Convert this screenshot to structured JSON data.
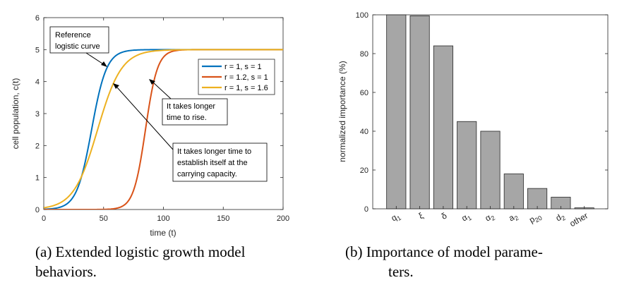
{
  "chart_data": [
    {
      "type": "line",
      "xlabel": "time (t)",
      "ylabel": "cell population, c(t)",
      "xlim": [
        0,
        200
      ],
      "ylim": [
        0,
        6
      ],
      "xticks": [
        "0",
        "50",
        "100",
        "150",
        "200"
      ],
      "yticks": [
        "0",
        "1",
        "2",
        "3",
        "4",
        "5",
        "6"
      ],
      "grid": false,
      "legend_position": "right",
      "series": [
        {
          "name": "r = 1, s = 1",
          "color": "#0072BD",
          "K": 5,
          "midpoint": 40,
          "steepness": 0.16
        },
        {
          "name": "r = 1.2, s = 1",
          "color": "#D95319",
          "K": 5,
          "midpoint": 85,
          "steepness": 0.2
        },
        {
          "name": "r = 1, s = 1.6",
          "color": "#EDB120",
          "K": 5,
          "midpoint": 45,
          "steepness": 0.1
        }
      ],
      "annotations": [
        {
          "lines": [
            "Reference",
            "logistic curve"
          ],
          "target": {
            "x": 50,
            "y": 4.8
          }
        },
        {
          "lines": [
            "It takes longer",
            "time to rise."
          ],
          "target": {
            "x": 88,
            "y": 4.1
          }
        },
        {
          "lines": [
            "It takes longer time to",
            "establish itself at the",
            "carrying capacity."
          ],
          "target": {
            "x": 57,
            "y": 4.0
          }
        }
      ],
      "caption": [
        "(a) Extended logistic growth model",
        "behaviors."
      ]
    },
    {
      "type": "bar",
      "ylabel": "normalized importance (%)",
      "ylim": [
        0,
        100
      ],
      "yticks": [
        "0",
        "20",
        "40",
        "60",
        "80",
        "100"
      ],
      "bar_color": "#A6A6A6",
      "categories": [
        "q1",
        "ξ",
        "δ",
        "α1",
        "α2",
        "a2",
        "p20",
        "d2",
        "other"
      ],
      "category_labels": [
        {
          "main": "q",
          "sub": "1"
        },
        {
          "main": "ξ",
          "sub": ""
        },
        {
          "main": "δ",
          "sub": ""
        },
        {
          "main": "α",
          "sub": "1"
        },
        {
          "main": "α",
          "sub": "2"
        },
        {
          "main": "a",
          "sub": "2"
        },
        {
          "main": "p",
          "sub": "20"
        },
        {
          "main": "d",
          "sub": "2"
        },
        {
          "main": "other",
          "sub": ""
        }
      ],
      "values": [
        100,
        99.5,
        84,
        45,
        40,
        18,
        10.5,
        6,
        0.5
      ],
      "caption": [
        "(b) Importance of model parame-",
        "ters."
      ]
    }
  ]
}
